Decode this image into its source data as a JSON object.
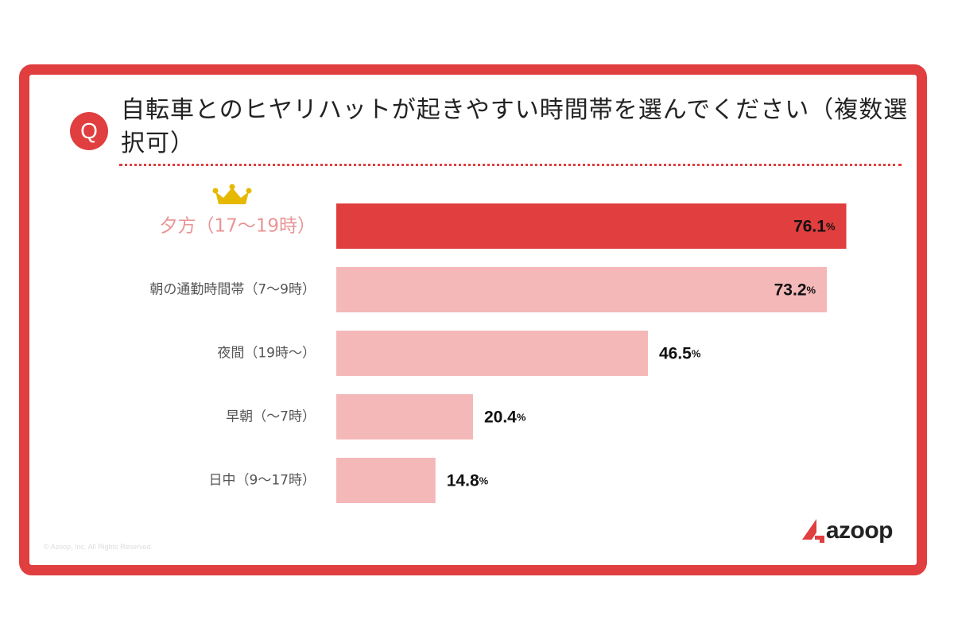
{
  "question": {
    "badge": "Q",
    "text": "自転車とのヒヤリハットが起きやすい時間帯を選んでください（複数選択可）"
  },
  "chart_data": {
    "type": "bar",
    "orientation": "horizontal",
    "categories": [
      "夕方（17〜19時）",
      "朝の通勤時間帯（7〜9時）",
      "夜間（19時〜）",
      "早朝（〜7時）",
      "日中（9〜17時）"
    ],
    "values": [
      76.1,
      73.2,
      46.5,
      20.4,
      14.8
    ],
    "value_labels": [
      "76.1",
      "73.2",
      "46.5",
      "20.4",
      "14.8"
    ],
    "unit": "%",
    "xlim": [
      0,
      100
    ],
    "grid": false,
    "highlight_index": 0,
    "highlight_icon": "crown-icon",
    "colors": {
      "highlight_bar": "#e03e3f",
      "bar": "#f4b8b9",
      "highlight_label": "#e99596",
      "label": "#555555",
      "value": "#111111",
      "crown": "#e6b800"
    }
  },
  "footer": {
    "copyright": "© Azoop, Inc. All Rights Reserved.",
    "logo_text": "azoop"
  }
}
